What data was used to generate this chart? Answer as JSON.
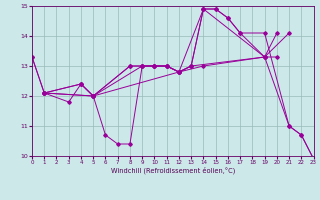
{
  "line1_x": [
    0,
    1,
    3,
    4,
    5,
    8,
    9,
    10,
    11,
    12,
    13,
    19,
    21
  ],
  "line1_y": [
    13.3,
    12.1,
    11.8,
    12.4,
    12.0,
    13.0,
    13.0,
    13.0,
    13.0,
    12.8,
    13.0,
    13.3,
    14.1
  ],
  "line2_x": [
    1,
    5,
    6,
    7,
    8,
    9,
    10,
    11,
    12,
    14,
    19,
    20
  ],
  "line2_y": [
    12.1,
    12.0,
    10.7,
    10.4,
    10.4,
    13.0,
    13.0,
    13.0,
    12.8,
    13.0,
    13.3,
    13.3
  ],
  "line3_x": [
    0,
    1,
    4,
    5,
    8,
    9,
    10,
    11,
    12,
    13,
    14,
    15,
    16,
    17,
    19,
    20
  ],
  "line3_y": [
    13.3,
    12.1,
    12.4,
    12.0,
    13.0,
    13.0,
    13.0,
    13.0,
    12.8,
    13.0,
    14.9,
    14.9,
    14.6,
    14.1,
    13.3,
    14.1
  ],
  "line4_x": [
    1,
    4,
    5,
    12,
    13,
    14,
    15,
    16,
    17,
    19,
    21,
    22,
    23
  ],
  "line4_y": [
    12.1,
    12.4,
    12.0,
    12.8,
    13.0,
    14.9,
    14.9,
    14.6,
    14.1,
    14.1,
    11.0,
    10.7,
    9.9
  ],
  "line5_x": [
    1,
    5,
    9,
    10,
    11,
    12,
    14,
    19,
    21,
    22,
    23
  ],
  "line5_y": [
    12.1,
    12.0,
    13.0,
    13.0,
    13.0,
    12.8,
    14.9,
    13.3,
    11.0,
    10.7,
    9.9
  ],
  "color": "#990099",
  "bg_color": "#cce8e8",
  "xlabel": "Windchill (Refroidissement éolien,°C)",
  "xlim": [
    0,
    23
  ],
  "ylim": [
    10,
    15
  ],
  "xticks": [
    0,
    1,
    2,
    3,
    4,
    5,
    6,
    7,
    8,
    9,
    10,
    11,
    12,
    13,
    14,
    15,
    16,
    17,
    18,
    19,
    20,
    21,
    22,
    23
  ],
  "yticks": [
    10,
    11,
    12,
    13,
    14,
    15
  ],
  "figwidth": 3.2,
  "figheight": 2.0,
  "dpi": 100
}
